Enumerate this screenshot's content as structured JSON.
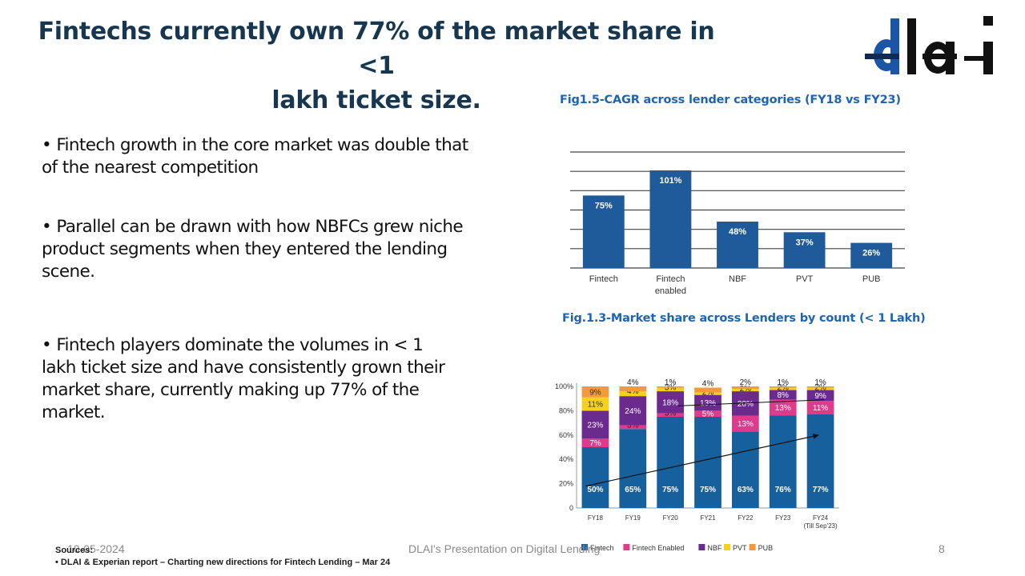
{
  "slide": {
    "title_line1": "Fintechs currently own 77% of the market share in <1",
    "title_line2": "lakh ticket size.",
    "logo_text": "dlai",
    "bullets": [
      "•  Fintech growth in the core market was double that of the nearest competition",
      "•  Parallel can be drawn with how NBFCs grew niche product segments when they entered the lending scene.",
      "•  Fintech players dominate the volumes in < 1 lakh ticket size and have consistently grown their market share, currently making up 77% of the market."
    ]
  },
  "footer": {
    "date": "10-05-2024",
    "center": "DLAI's Presentation on Digital Lending",
    "page": "8",
    "sources_label": "Sources:",
    "source_item": "•       DLAI & Experian  report – Charting new directions for Fintech Lending – Mar 24"
  },
  "chart_data": [
    {
      "type": "bar",
      "title": "Fig1.5-CAGR across lender categories (FY18 vs FY23)",
      "categories": [
        "Fintech",
        "Fintech enabled",
        "NBF",
        "PVT",
        "PUB"
      ],
      "values": [
        75,
        101,
        48,
        37,
        26
      ],
      "data_labels": [
        "75%",
        "101%",
        "48%",
        "37%",
        "26%"
      ],
      "ylim": [
        0,
        120
      ],
      "grid": true,
      "color": "#1f5a9a"
    },
    {
      "type": "bar",
      "stacked": true,
      "title": "Fig.1.3-Market share across Lenders by count (< 1 Lakh)",
      "categories": [
        "FY18",
        "FY19",
        "FY20",
        "FY21",
        "FY22",
        "FY23",
        "FY24"
      ],
      "category_notes": [
        "",
        "",
        "",
        "",
        "",
        "",
        "(Till Sep'23)"
      ],
      "y_ticks": [
        "0",
        "20%",
        "40%",
        "60%",
        "80%",
        "100%"
      ],
      "ylim": [
        0,
        100
      ],
      "series": [
        {
          "name": "Fintech",
          "color": "#17609e",
          "values": [
            50,
            65,
            75,
            75,
            63,
            76,
            77
          ]
        },
        {
          "name": "Fintech Enabled",
          "color": "#e03a8c",
          "values": [
            7,
            3,
            3,
            5,
            13,
            13,
            11
          ]
        },
        {
          "name": "NBF",
          "color": "#6b2a8e",
          "values": [
            23,
            24,
            18,
            13,
            20,
            8,
            9
          ]
        },
        {
          "name": "PVT",
          "color": "#f5d11e",
          "values": [
            11,
            4,
            3,
            2,
            2,
            2,
            2
          ]
        },
        {
          "name": "PUB",
          "color": "#f39a3a",
          "values": [
            9,
            4,
            1,
            4,
            2,
            1,
            1
          ]
        }
      ],
      "legend": [
        "Fintech",
        "Fintech Enabled",
        "NBF",
        "PVT",
        "PUB"
      ],
      "legend_position": "bottom",
      "annotations": [
        "trend arrow rising from FY18 to FY24"
      ]
    }
  ]
}
